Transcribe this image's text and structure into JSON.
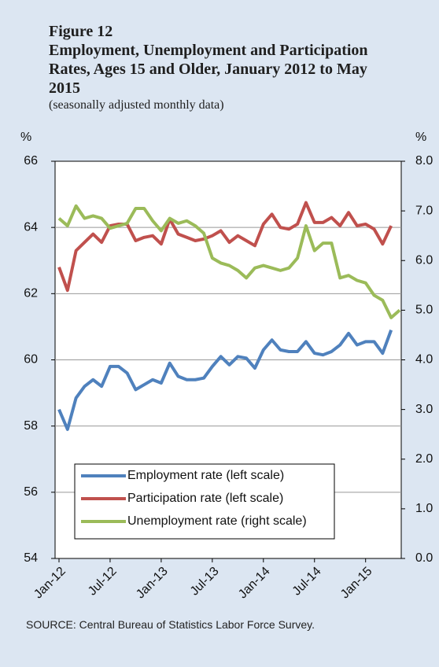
{
  "chart_data": {
    "type": "line",
    "figure_label": "Figure 12",
    "title": "Employment, Unemployment and Participation Rates, Ages 15 and Older, January 2012 to May 2015",
    "subtitle": "(seasonally adjusted monthly data)",
    "ylabel": "%",
    "y2label": "%",
    "source": "SOURCE: Central Bureau of Statistics Labor Force Survey.",
    "categories": [
      "Jan-12",
      null,
      null,
      null,
      null,
      null,
      "Jul-12",
      null,
      null,
      null,
      null,
      null,
      "Jan-13",
      null,
      null,
      null,
      null,
      null,
      "Jul-13",
      null,
      null,
      null,
      null,
      null,
      "Jan-14",
      null,
      null,
      null,
      null,
      null,
      "Jul-14",
      null,
      null,
      null,
      null,
      null,
      "Jan-15",
      null,
      null,
      null,
      null
    ],
    "ylim": [
      54,
      66
    ],
    "yticks": [
      54,
      56,
      58,
      60,
      62,
      64,
      66
    ],
    "y2lim": [
      0,
      8
    ],
    "y2ticks": [
      {
        "value": 0,
        "label": "0.0"
      },
      {
        "value": 1,
        "label": "1.0"
      },
      {
        "value": 2,
        "label": "2.0"
      },
      {
        "value": 3,
        "label": "3.0"
      },
      {
        "value": 4,
        "label": "4.0"
      },
      {
        "value": 5,
        "label": "5.0"
      },
      {
        "value": 6,
        "label": "6.0"
      },
      {
        "value": 7,
        "label": "7.0"
      },
      {
        "value": 8,
        "label": "8.0"
      }
    ],
    "grid": true,
    "series": [
      {
        "name": "Employment rate (left scale)",
        "color": "#4f81bd",
        "values": [
          58.5,
          57.9,
          58.85,
          59.2,
          59.4,
          59.2,
          59.8,
          59.8,
          59.6,
          59.1,
          59.25,
          59.4,
          59.3,
          59.9,
          59.5,
          59.4,
          59.4,
          59.45,
          59.8,
          60.1,
          59.85,
          60.1,
          60.05,
          59.75,
          60.3,
          60.6,
          60.3,
          60.25,
          60.25,
          60.55,
          60.2,
          60.15,
          60.25,
          60.45,
          60.8,
          60.45,
          60.55,
          60.55,
          60.2,
          60.9,
          null
        ]
      },
      {
        "name": "Participation rate (left scale)",
        "color": "#c0504d",
        "values": [
          62.8,
          62.1,
          63.3,
          63.55,
          63.8,
          63.55,
          64.05,
          64.1,
          64.1,
          63.6,
          63.7,
          63.75,
          63.5,
          64.25,
          63.8,
          63.7,
          63.6,
          63.65,
          63.75,
          63.9,
          63.55,
          63.75,
          63.6,
          63.45,
          64.1,
          64.4,
          64.0,
          63.95,
          64.1,
          64.75,
          64.15,
          64.15,
          64.3,
          64.05,
          64.45,
          64.05,
          64.1,
          63.95,
          63.5,
          64.05,
          null
        ]
      },
      {
        "name": "Unemployment rate (right scale)",
        "color": "#9bbb59",
        "axis": "y2",
        "values": [
          6.85,
          6.7,
          7.1,
          6.85,
          6.9,
          6.85,
          6.65,
          6.7,
          6.75,
          7.05,
          7.05,
          6.8,
          6.6,
          6.85,
          6.75,
          6.8,
          6.7,
          6.55,
          6.05,
          5.95,
          5.9,
          5.8,
          5.65,
          5.85,
          5.9,
          5.85,
          5.8,
          5.85,
          6.05,
          6.7,
          6.2,
          6.35,
          6.35,
          5.65,
          5.7,
          5.6,
          5.55,
          5.3,
          5.2,
          4.85,
          5.0
        ]
      }
    ]
  }
}
